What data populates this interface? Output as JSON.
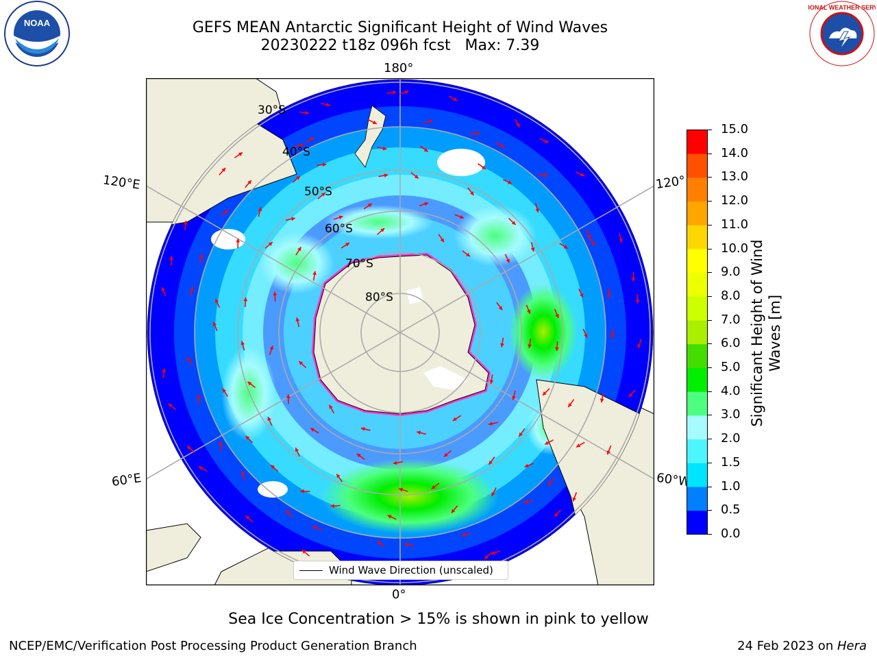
{
  "header": {
    "title_line1": "GEFS MEAN Antarctic Significant Height of Wind Waves",
    "title_line2": "20230222 t18z 096h fcst   Max: 7.39"
  },
  "logos": {
    "left": "noaa-logo",
    "right": "national-weather-service-logo",
    "left_text": "NOAA",
    "right_text": "NATIONAL WEATHER SERVICE"
  },
  "map": {
    "longitude_labels": {
      "top": "180°",
      "bottom": "0°",
      "left_upper": "120°E",
      "left_lower": "60°E",
      "right_upper": "120°",
      "right_lower": "60°W"
    },
    "latitude_labels": [
      "30°S",
      "40°S",
      "50°S",
      "60°S",
      "70°S",
      "80°S"
    ],
    "legend_label": "Wind Wave Direction (unscaled)",
    "land_color": "#efeedc",
    "ocean_low_color": "#0000ff",
    "arrow_color": "#ff0000"
  },
  "colorbar": {
    "title": "Significant Height of Wind Waves [m]",
    "ticks": [
      "0.0",
      "0.5",
      "1.0",
      "1.5",
      "2.0",
      "3.0",
      "4.0",
      "5.0",
      "6.0",
      "7.0",
      "8.0",
      "9.0",
      "10.0",
      "11.0",
      "12.0",
      "13.0",
      "14.0",
      "15.0"
    ],
    "colors": [
      "#0000ff",
      "#007fff",
      "#00e5ff",
      "#4df5ff",
      "#a6fbff",
      "#4dff7f",
      "#00ee00",
      "#44dd00",
      "#aaee00",
      "#ccff00",
      "#eeff00",
      "#ffff00",
      "#ffd700",
      "#ffa500",
      "#ff8000",
      "#ff5000",
      "#ff0000"
    ]
  },
  "caption": "Sea Ice Concentration > 15% is shown in pink to yellow",
  "footer": {
    "left": "NCEP/EMC/Verification Post Processing Product Generation Branch",
    "right_prefix": "24 Feb 2023 on ",
    "right_machine": "Hera"
  }
}
